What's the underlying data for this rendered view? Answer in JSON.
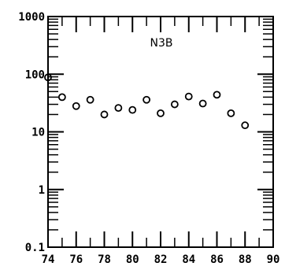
{
  "chart_data": {
    "type": "scatter",
    "label": "N3B",
    "x_ticks": [
      "74",
      "76",
      "78",
      "80",
      "82",
      "84",
      "86",
      "88",
      "90"
    ],
    "y_ticks": [
      "0.1",
      "1",
      "10",
      "100",
      "1000"
    ],
    "xlim": [
      74,
      90
    ],
    "ylim": [
      0.1,
      1000
    ],
    "y_scale": "log",
    "marker": "open-circle",
    "points": [
      {
        "x": 74,
        "y": 88
      },
      {
        "x": 75,
        "y": 40
      },
      {
        "x": 76,
        "y": 28
      },
      {
        "x": 77,
        "y": 36
      },
      {
        "x": 78,
        "y": 20
      },
      {
        "x": 79,
        "y": 26
      },
      {
        "x": 80,
        "y": 24
      },
      {
        "x": 81,
        "y": 36
      },
      {
        "x": 82,
        "y": 21
      },
      {
        "x": 83,
        "y": 30
      },
      {
        "x": 84,
        "y": 41
      },
      {
        "x": 85,
        "y": 31
      },
      {
        "x": 86,
        "y": 44
      },
      {
        "x": 87,
        "y": 21
      },
      {
        "x": 88,
        "y": 13
      }
    ]
  }
}
